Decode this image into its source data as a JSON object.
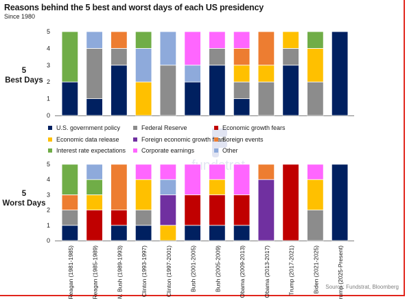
{
  "title": "Reasons behind the 5 best and worst days of each US presidency",
  "subtitle": "Since 1980",
  "source": "Source: Fundstrat, Bloomberg",
  "watermark": "fundstrat",
  "colors": {
    "US government policy": "#002060",
    "Federal Reserve": "#8c8c8c",
    "Economic growth fears": "#c00000",
    "Economic data release": "#ffc000",
    "Foreign economic growth fears": "#7030a0",
    "Foreign events": "#ed7d31",
    "Interest rate expectations": "#70ad47",
    "Corporate earnings": "#ff66ff",
    "Other": "#8eaadb"
  },
  "legend": [
    "U.S. government policy",
    "Federal Reserve",
    "Economic growth fears",
    "Economic data release",
    "Foreign economic growth fears",
    "Foreign events",
    "Interest rate expectations",
    "Corporate earnings",
    "Other"
  ],
  "chart_data": [
    {
      "type": "bar",
      "stacked": true,
      "panel_label": [
        "5",
        "Best Days"
      ],
      "ylim": [
        0,
        5
      ],
      "yticks": [
        0,
        1,
        2,
        3,
        4,
        5
      ],
      "categories": [
        "Reagan (1981-1985)",
        "Reagan (1985-1989)",
        "H. W. Bush (1989-1993)",
        "Clinton (1993-1997)",
        "Clinton (1997-2001)",
        "Bush (2001-2005)",
        "Bush (2005-2009)",
        "Obama (2009-2013)",
        "Obama (2013-2017)",
        "Trump (2017-2021)",
        "Biden (2021-2025)",
        "Trump (2025-Present)"
      ],
      "series": [
        {
          "name": "U.S. government policy",
          "values": [
            2,
            1,
            3,
            0,
            0,
            2,
            3,
            1,
            0,
            3,
            0,
            5
          ]
        },
        {
          "name": "Federal Reserve",
          "values": [
            0,
            3,
            1,
            0,
            3,
            0,
            1,
            1,
            2,
            1,
            2,
            0
          ]
        },
        {
          "name": "Economic data release",
          "values": [
            0,
            0,
            0,
            2,
            0,
            0,
            0,
            1,
            1,
            1,
            2,
            0
          ]
        },
        {
          "name": "Foreign events",
          "values": [
            0,
            0,
            1,
            0,
            0,
            0,
            0,
            1,
            2,
            0,
            0,
            0
          ]
        },
        {
          "name": "Other",
          "values": [
            0,
            1,
            0,
            2,
            2,
            1,
            0,
            0,
            0,
            0,
            0,
            0
          ]
        },
        {
          "name": "Corporate earnings",
          "values": [
            0,
            0,
            0,
            0,
            0,
            2,
            1,
            1,
            0,
            0,
            0,
            0
          ]
        },
        {
          "name": "Interest rate expectations",
          "values": [
            3,
            0,
            0,
            1,
            0,
            0,
            0,
            0,
            0,
            0,
            1,
            0
          ]
        }
      ]
    },
    {
      "type": "bar",
      "stacked": true,
      "panel_label": [
        "5",
        "Worst Days"
      ],
      "ylim": [
        0,
        5
      ],
      "yticks": [
        0,
        1,
        2,
        3,
        4,
        5
      ],
      "categories": [
        "Reagan (1981-1985)",
        "Reagan (1985-1989)",
        "H. W. Bush (1989-1993)",
        "Clinton (1993-1997)",
        "Clinton (1997-2001)",
        "Bush (2001-2005)",
        "Bush (2005-2009)",
        "Obama (2009-2013)",
        "Obama (2013-2017)",
        "Trump (2017-2021)",
        "Biden (2021-2025)",
        "Trump (2025-Present)"
      ],
      "series": [
        {
          "name": "U.S. government policy",
          "values": [
            1,
            0,
            1,
            1,
            0,
            1,
            1,
            1,
            0,
            0,
            0,
            5
          ]
        },
        {
          "name": "Federal Reserve",
          "values": [
            1,
            0,
            0,
            1,
            0,
            0,
            0,
            0,
            0,
            0,
            2,
            0
          ]
        },
        {
          "name": "Economic growth fears",
          "values": [
            0,
            2,
            1,
            0,
            0,
            2,
            2,
            2,
            0,
            5,
            0,
            0
          ]
        },
        {
          "name": "Economic data release",
          "values": [
            0,
            1,
            0,
            2,
            1,
            0,
            1,
            0,
            0,
            0,
            2,
            0
          ]
        },
        {
          "name": "Foreign economic growth fears",
          "values": [
            0,
            0,
            0,
            0,
            2,
            0,
            0,
            0,
            4,
            0,
            0,
            0
          ]
        },
        {
          "name": "Foreign events",
          "values": [
            1,
            0,
            3,
            0,
            0,
            0,
            0,
            0,
            1,
            0,
            0,
            0
          ]
        },
        {
          "name": "Interest rate expectations",
          "values": [
            2,
            1,
            0,
            0,
            0,
            0,
            0,
            0,
            0,
            0,
            0,
            0
          ]
        },
        {
          "name": "Other",
          "values": [
            0,
            1,
            0,
            0,
            1,
            0,
            0,
            0,
            0,
            0,
            0,
            0
          ]
        },
        {
          "name": "Corporate earnings",
          "values": [
            0,
            0,
            0,
            1,
            1,
            2,
            1,
            2,
            0,
            0,
            1,
            0
          ]
        }
      ]
    }
  ]
}
